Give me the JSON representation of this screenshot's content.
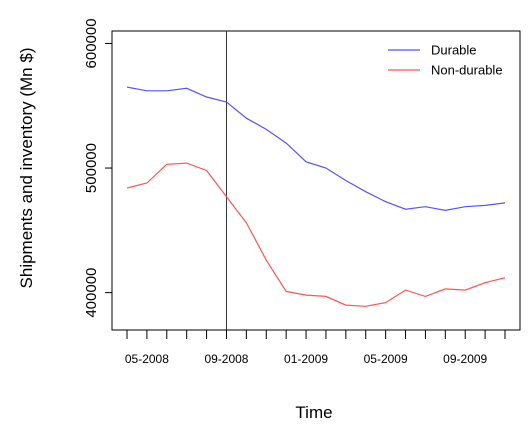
{
  "chart_data": {
    "type": "line",
    "title": "",
    "xlabel": "Time",
    "ylabel": "Shipments and inventory (Mn $)",
    "x": [
      "04-2008",
      "05-2008",
      "06-2008",
      "07-2008",
      "08-2008",
      "09-2008",
      "10-2008",
      "11-2008",
      "12-2008",
      "01-2009",
      "02-2009",
      "03-2009",
      "04-2009",
      "05-2009",
      "06-2009",
      "07-2009",
      "08-2009",
      "09-2009",
      "10-2009",
      "11-2009"
    ],
    "x_tick_labels": [
      "05-2008",
      "09-2008",
      "01-2009",
      "05-2009",
      "09-2009"
    ],
    "y_ticks": [
      400000,
      500000,
      600000
    ],
    "ylim": [
      370000,
      610000
    ],
    "grid": false,
    "legend_position": "top-right",
    "series": [
      {
        "name": "Durable",
        "color": "#5555ff",
        "values": [
          565000,
          562000,
          562000,
          564000,
          557000,
          553000,
          540000,
          531000,
          520000,
          505000,
          500000,
          490000,
          481000,
          473000,
          467000,
          469000,
          466000,
          469000,
          470000,
          472000
        ]
      },
      {
        "name": "Non-durable",
        "color": "#ff5555",
        "values": [
          484000,
          488000,
          503000,
          504000,
          498000,
          477000,
          456000,
          426000,
          401000,
          398000,
          397000,
          390000,
          389000,
          392000,
          402000,
          397000,
          403000,
          402000,
          408000,
          412000
        ]
      }
    ],
    "vline_x": "09-2008",
    "vline_color": "#333333"
  }
}
